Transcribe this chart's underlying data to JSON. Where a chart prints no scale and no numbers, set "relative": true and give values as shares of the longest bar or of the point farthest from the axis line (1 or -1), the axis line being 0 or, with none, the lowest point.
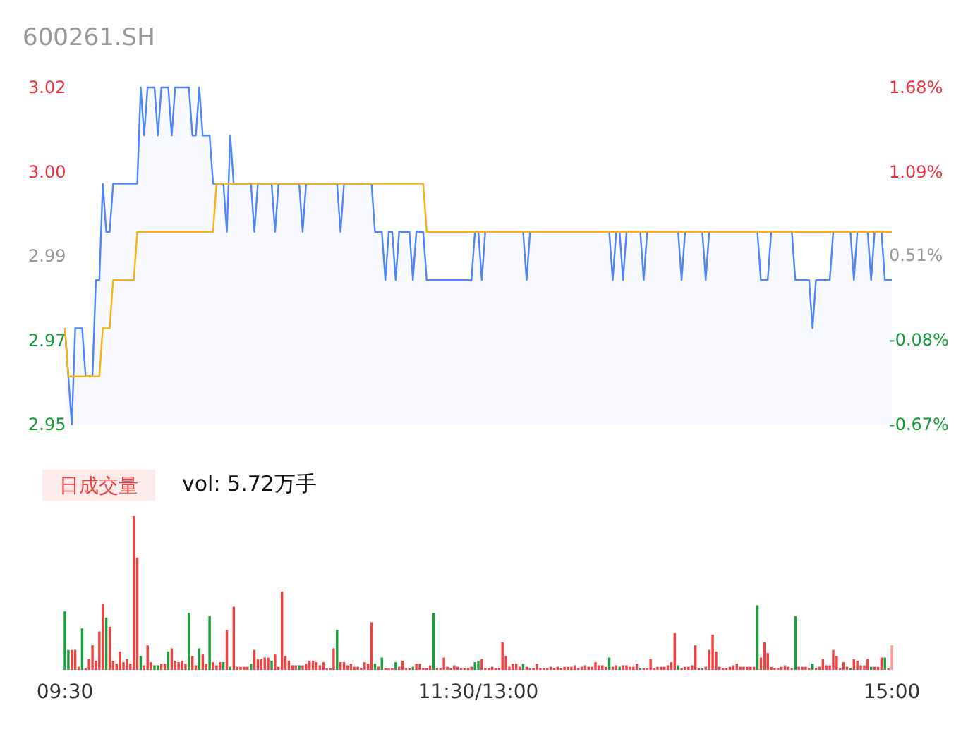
{
  "chart_data": [
    {
      "type": "line",
      "title": "600261.SH",
      "ylim": [
        2.95,
        3.02
      ],
      "yticks": [
        2.95,
        {
          "value": 2.9675,
          "label": "2.97"
        },
        {
          "value": 2.985,
          "label": "2.99"
        },
        {
          "value": 3.0025,
          "label": "3.00"
        },
        3.02
      ],
      "y2lim": [
        -0.67,
        1.68
      ],
      "y2ticks": [
        {
          "value": -0.67,
          "label": "-0.67%"
        },
        {
          "value": -0.08,
          "label": "-0.08%"
        },
        {
          "value": 0.51,
          "label": "0.51%"
        },
        {
          "value": 1.09,
          "label": "1.09%"
        },
        {
          "value": 1.68,
          "label": "1.68%"
        }
      ],
      "categories": [
        null,
        null,
        null,
        null,
        null,
        null,
        null,
        null,
        null,
        null,
        null,
        null,
        null,
        null,
        null,
        null,
        null,
        null,
        null,
        null,
        null,
        null,
        null,
        null,
        null,
        null,
        null,
        null,
        null,
        null,
        null,
        null,
        null,
        null,
        null,
        null,
        null,
        null,
        null,
        null,
        null,
        null,
        null,
        null,
        null,
        null,
        null,
        null,
        null,
        null,
        null,
        null,
        null,
        null,
        null,
        null,
        null,
        null,
        null,
        null,
        null,
        null,
        null,
        null,
        null,
        null,
        null,
        null,
        null,
        null,
        null,
        null,
        null,
        null,
        null,
        null,
        null,
        null,
        null,
        null,
        null,
        null,
        null,
        null,
        null,
        null,
        null,
        null,
        null,
        null,
        null,
        null,
        null,
        null,
        null,
        null,
        null,
        null,
        null,
        null,
        null,
        null,
        null,
        null,
        null,
        null,
        null,
        null,
        null,
        null,
        null,
        null,
        null,
        null,
        null,
        null,
        null,
        null,
        null,
        null,
        null,
        null,
        null,
        null,
        null,
        null,
        null,
        null,
        null,
        null,
        null,
        null,
        null,
        null,
        null,
        null,
        null,
        null,
        null,
        null,
        null,
        null,
        null,
        null,
        null,
        null,
        null,
        null,
        null,
        null,
        null,
        null,
        null,
        null,
        null,
        null,
        null,
        null,
        null,
        null,
        null,
        null,
        null,
        null,
        null,
        null,
        null,
        null,
        null,
        null,
        null,
        null,
        null,
        null,
        null,
        null,
        null,
        null,
        null,
        null,
        null,
        null,
        null,
        null,
        null,
        null,
        null,
        null,
        null,
        null,
        null,
        null,
        null,
        null,
        null,
        null,
        null,
        null,
        null,
        null,
        null,
        null,
        null,
        null,
        null,
        null,
        null,
        null,
        null,
        null,
        null,
        null,
        null,
        null,
        null,
        null,
        null,
        null,
        null,
        null,
        null,
        null,
        null,
        null,
        null,
        null,
        null,
        null,
        null,
        null,
        null,
        null,
        null,
        null,
        null,
        null,
        null,
        null,
        null,
        null,
        null
      ],
      "series": [
        {
          "type": "area",
          "color": "#4f86f7",
          "values": [
            2.97,
            2.96,
            2.95,
            2.97,
            2.97,
            2.97,
            2.96,
            2.96,
            2.96,
            2.98,
            2.98,
            3.0,
            2.99,
            2.99,
            3.0,
            3.0,
            3.0,
            3.0,
            3.0,
            3.0,
            3.0,
            3.0,
            3.02,
            3.01,
            3.02,
            3.02,
            3.02,
            3.01,
            3.02,
            3.02,
            3.02,
            3.01,
            3.02,
            3.02,
            3.02,
            3.02,
            3.02,
            3.01,
            3.01,
            3.02,
            3.01,
            3.01,
            3.01,
            3.0,
            3.0,
            3.0,
            3.0,
            2.99,
            3.01,
            3.0,
            3.0,
            3.0,
            3.0,
            3.0,
            3.0,
            2.99,
            3.0,
            3.0,
            3.0,
            3.0,
            3.0,
            2.99,
            3.0,
            3.0,
            3.0,
            3.0,
            3.0,
            3.0,
            3.0,
            2.99,
            3.0,
            3.0,
            3.0,
            3.0,
            3.0,
            3.0,
            3.0,
            3.0,
            3.0,
            3.0,
            2.99,
            3.0,
            3.0,
            3.0,
            3.0,
            3.0,
            3.0,
            3.0,
            3.0,
            3.0,
            2.99,
            2.99,
            2.99,
            2.98,
            2.99,
            2.99,
            2.98,
            2.99,
            2.99,
            2.99,
            2.99,
            2.98,
            2.99,
            2.99,
            2.99,
            2.98,
            2.98,
            2.98,
            2.98,
            2.98,
            2.98,
            2.98,
            2.98,
            2.98,
            2.98,
            2.98,
            2.98,
            2.98,
            2.98,
            2.99,
            2.99,
            2.98,
            2.99,
            2.99,
            2.99,
            2.99,
            2.99,
            2.99,
            2.99,
            2.99,
            2.99,
            2.99,
            2.99,
            2.99,
            2.98,
            2.99,
            2.99,
            2.99,
            2.99,
            2.99,
            2.99,
            2.99,
            2.99,
            2.99,
            2.99,
            2.99,
            2.99,
            2.99,
            2.99,
            2.99,
            2.99,
            2.99,
            2.99,
            2.99,
            2.99,
            2.99,
            2.99,
            2.99,
            2.99,
            2.98,
            2.99,
            2.99,
            2.98,
            2.99,
            2.99,
            2.99,
            2.99,
            2.99,
            2.98,
            2.99,
            2.99,
            2.99,
            2.99,
            2.99,
            2.99,
            2.99,
            2.99,
            2.99,
            2.99,
            2.98,
            2.99,
            2.99,
            2.99,
            2.99,
            2.99,
            2.99,
            2.98,
            2.99,
            2.99,
            2.99,
            2.99,
            2.99,
            2.99,
            2.99,
            2.99,
            2.99,
            2.99,
            2.99,
            2.99,
            2.99,
            2.99,
            2.99,
            2.98,
            2.98,
            2.98,
            2.99,
            2.99,
            2.99,
            2.99,
            2.99,
            2.99,
            2.99,
            2.98,
            2.98,
            2.98,
            2.98,
            2.98,
            2.97,
            2.98,
            2.98,
            2.98,
            2.98,
            2.98,
            2.99,
            2.99,
            2.99,
            2.99,
            2.99,
            2.99,
            2.98,
            2.99,
            2.99,
            2.99,
            2.99,
            2.98,
            2.99,
            2.99,
            2.99,
            2.98,
            2.98,
            2.98
          ]
        },
        {
          "type": "line",
          "color": "#f5b311",
          "values": [
            2.97,
            2.96,
            2.96,
            2.96,
            2.96,
            2.96,
            2.96,
            2.96,
            2.96,
            2.96,
            2.96,
            2.97,
            2.97,
            2.97,
            2.98,
            2.98,
            2.98,
            2.98,
            2.98,
            2.98,
            2.98,
            2.99,
            2.99,
            2.99,
            2.99,
            2.99,
            2.99,
            2.99,
            2.99,
            2.99,
            2.99,
            2.99,
            2.99,
            2.99,
            2.99,
            2.99,
            2.99,
            2.99,
            2.99,
            2.99,
            2.99,
            2.99,
            2.99,
            2.99,
            3.0,
            3.0,
            3.0,
            3.0,
            3.0,
            3.0,
            3.0,
            3.0,
            3.0,
            3.0,
            3.0,
            3.0,
            3.0,
            3.0,
            3.0,
            3.0,
            3.0,
            3.0,
            3.0,
            3.0,
            3.0,
            3.0,
            3.0,
            3.0,
            3.0,
            3.0,
            3.0,
            3.0,
            3.0,
            3.0,
            3.0,
            3.0,
            3.0,
            3.0,
            3.0,
            3.0,
            3.0,
            3.0,
            3.0,
            3.0,
            3.0,
            3.0,
            3.0,
            3.0,
            3.0,
            3.0,
            3.0,
            3.0,
            3.0,
            3.0,
            3.0,
            3.0,
            3.0,
            3.0,
            3.0,
            3.0,
            3.0,
            3.0,
            3.0,
            3.0,
            3.0,
            2.99,
            2.99,
            2.99,
            2.99,
            2.99,
            2.99,
            2.99,
            2.99,
            2.99,
            2.99,
            2.99,
            2.99,
            2.99,
            2.99,
            2.99,
            2.99,
            2.99,
            2.99,
            2.99,
            2.99,
            2.99,
            2.99,
            2.99,
            2.99,
            2.99,
            2.99,
            2.99,
            2.99,
            2.99,
            2.99,
            2.99,
            2.99,
            2.99,
            2.99,
            2.99,
            2.99,
            2.99,
            2.99,
            2.99,
            2.99,
            2.99,
            2.99,
            2.99,
            2.99,
            2.99,
            2.99,
            2.99,
            2.99,
            2.99,
            2.99,
            2.99,
            2.99,
            2.99,
            2.99,
            2.99,
            2.99,
            2.99,
            2.99,
            2.99,
            2.99,
            2.99,
            2.99,
            2.99,
            2.99,
            2.99,
            2.99,
            2.99,
            2.99,
            2.99,
            2.99,
            2.99,
            2.99,
            2.99,
            2.99,
            2.99,
            2.99,
            2.99,
            2.99,
            2.99,
            2.99,
            2.99,
            2.99,
            2.99,
            2.99,
            2.99,
            2.99,
            2.99,
            2.99,
            2.99,
            2.99,
            2.99,
            2.99,
            2.99,
            2.99,
            2.99,
            2.99,
            2.99,
            2.99,
            2.99,
            2.99,
            2.99,
            2.99,
            2.99,
            2.99,
            2.99,
            2.99,
            2.99,
            2.99,
            2.99,
            2.99,
            2.99,
            2.99,
            2.99,
            2.99,
            2.99,
            2.99,
            2.99,
            2.99,
            2.99,
            2.99,
            2.99,
            2.99,
            2.99,
            2.99,
            2.99,
            2.99,
            2.99,
            2.99,
            2.99,
            2.99,
            2.99,
            2.99,
            2.99,
            2.99,
            2.99,
            2.99
          ]
        }
      ]
    },
    {
      "type": "bar",
      "relative": true,
      "annotations": [
        "日成交量",
        "vol: 5.72万手"
      ],
      "categories": [
        "09:30",
        null,
        null,
        null,
        null,
        null,
        null,
        null,
        null,
        null,
        null,
        null,
        null,
        null,
        null,
        null,
        null,
        null,
        null,
        null,
        null,
        null,
        null,
        null,
        null,
        null,
        null,
        null,
        null,
        null,
        null,
        null,
        null,
        null,
        null,
        null,
        null,
        null,
        null,
        null,
        null,
        null,
        null,
        null,
        null,
        null,
        null,
        null,
        null,
        null,
        null,
        null,
        null,
        null,
        null,
        null,
        null,
        null,
        null,
        null,
        null,
        null,
        null,
        null,
        null,
        null,
        null,
        null,
        null,
        null,
        null,
        null,
        null,
        null,
        null,
        null,
        null,
        null,
        null,
        null,
        null,
        null,
        null,
        null,
        null,
        null,
        null,
        null,
        null,
        null,
        null,
        null,
        null,
        null,
        null,
        null,
        null,
        null,
        null,
        null,
        null,
        null,
        null,
        null,
        null,
        null,
        null,
        null,
        null,
        null,
        null,
        null,
        null,
        null,
        null,
        null,
        null,
        null,
        null,
        null,
        "11:30/13:00",
        null,
        null,
        null,
        null,
        null,
        null,
        null,
        null,
        null,
        null,
        null,
        null,
        null,
        null,
        null,
        null,
        null,
        null,
        null,
        null,
        null,
        null,
        null,
        null,
        null,
        null,
        null,
        null,
        null,
        null,
        null,
        null,
        null,
        null,
        null,
        null,
        null,
        null,
        null,
        null,
        null,
        null,
        null,
        null,
        null,
        null,
        null,
        null,
        null,
        null,
        null,
        null,
        null,
        null,
        null,
        null,
        null,
        null,
        null,
        null,
        null,
        null,
        null,
        null,
        null,
        null,
        null,
        null,
        null,
        null,
        null,
        null,
        null,
        null,
        null,
        null,
        null,
        null,
        null,
        null,
        null,
        null,
        null,
        null,
        null,
        null,
        null,
        null,
        null,
        null,
        null,
        null,
        null,
        null,
        null,
        null,
        null,
        null,
        null,
        null,
        null,
        null,
        null,
        null,
        null,
        null,
        null,
        null,
        null,
        null,
        null,
        null,
        null,
        null,
        null,
        null,
        null,
        null,
        null,
        "15:00"
      ],
      "values": [
        0.38,
        0.13,
        0.13,
        0.13,
        0.02,
        0.27,
        0.01,
        0.07,
        0.16,
        0.06,
        0.25,
        0.43,
        0.34,
        0.28,
        0.06,
        0.04,
        0.12,
        0.05,
        0.07,
        0.04,
        1,
        0.73,
        0.09,
        0.03,
        0.16,
        0.05,
        0.03,
        0.03,
        0.04,
        0.04,
        0.12,
        0.14,
        0.06,
        0.05,
        0.06,
        0.04,
        0.37,
        0.09,
        0.03,
        0.14,
        0.1,
        0.04,
        0.35,
        0.05,
        0.03,
        0.05,
        0.05,
        0.26,
        0.02,
        0.41,
        0.02,
        0.02,
        0.02,
        0.02,
        0.04,
        0.13,
        0.07,
        0.07,
        0.08,
        0.08,
        0.06,
        0.1,
        0.02,
        0.51,
        0.09,
        0.06,
        0.03,
        0.03,
        0.03,
        0.03,
        0.04,
        0.06,
        0.06,
        0.05,
        0.03,
        0.05,
        0.01,
        0.01,
        0.14,
        0.26,
        0.05,
        0.05,
        0.03,
        0.04,
        0.02,
        0.02,
        0.01,
        0.05,
        0.04,
        0.31,
        0.04,
        0.02,
        0.08,
        0.01,
        0.01,
        0.01,
        0.05,
        0.02,
        0.06,
        0.01,
        0.01,
        0.02,
        0.04,
        0.04,
        0.01,
        0.01,
        0.03,
        0.37,
        0.01,
        0.01,
        0.08,
        0.02,
        0.01,
        0.03,
        0.02,
        0.01,
        0.01,
        0.01,
        0.02,
        0.05,
        0.06,
        0.07,
        0.01,
        0.01,
        0.02,
        0.01,
        0.01,
        0.18,
        0.09,
        0.02,
        0.04,
        0.04,
        0.02,
        0.04,
        0.02,
        0.01,
        0.01,
        0.04,
        0.01,
        0.01,
        0.01,
        0.02,
        0.01,
        0.02,
        0.01,
        0.02,
        0.02,
        0.02,
        0.03,
        0.01,
        0.02,
        0.03,
        0.02,
        0.02,
        0.05,
        0.03,
        0.03,
        0.02,
        0.08,
        0.02,
        0.03,
        0.02,
        0.03,
        0.03,
        0.02,
        0.02,
        0.04,
        0.01,
        0.01,
        0.01,
        0.07,
        0.01,
        0.02,
        0.02,
        0.02,
        0.03,
        0.05,
        0.24,
        0.03,
        0.01,
        0.02,
        0.02,
        0.03,
        0.16,
        0.01,
        0.01,
        0.02,
        0.13,
        0.23,
        0.12,
        0.02,
        0.01,
        0.01,
        0.02,
        0.03,
        0.04,
        0.02,
        0.02,
        0.02,
        0.02,
        0.02,
        0.42,
        0.08,
        0.18,
        0.11,
        0.02,
        0.01,
        0.01,
        0.02,
        0.03,
        0.02,
        0.01,
        0.35,
        0.02,
        0.02,
        0.02,
        0.01,
        0.04,
        0.01,
        0.02,
        0.07,
        0.03,
        0.03,
        0.13,
        0.09,
        0.01,
        0.05,
        0.02,
        0.01,
        0.07,
        0.06,
        0.03,
        0.03,
        0.07,
        0.02,
        0.02,
        0.02,
        0.08,
        0.08,
        0.01,
        0.16
      ],
      "colors": [
        "#1a9f3c",
        "#1a9f3c",
        "#f24040",
        "#f24040",
        "#f24040",
        "#1a9f3c",
        "#f24040",
        "#f24040",
        "#f24040",
        "#f24040",
        "#f24040",
        "#f24040",
        "#1a9f3c",
        "#f24040",
        "#f24040",
        "#f24040",
        "#f24040",
        "#f24040",
        "#f24040",
        "#f24040",
        "#f24040",
        "#f24040",
        "#1a9f3c",
        "#f24040",
        "#f24040",
        "#f24040",
        "#1a9f3c",
        "#1a9f3c",
        "#f24040",
        "#f24040",
        "#1a9f3c",
        "#f24040",
        "#f24040",
        "#f24040",
        "#f24040",
        "#f24040",
        "#1a9f3c",
        "#f24040",
        "#f24040",
        "#1a9f3c",
        "#f24040",
        "#f24040",
        "#1a9f3c",
        "#f24040",
        "#f24040",
        "#f24040",
        "#1a9f3c",
        "#f24040",
        "#1a9f3c",
        "#f24040",
        "#f24040",
        "#f24040",
        "#f24040",
        "#f24040",
        "#1a9f3c",
        "#f24040",
        "#f24040",
        "#f24040",
        "#f24040",
        "#f24040",
        "#1a9f3c",
        "#f24040",
        "#f24040",
        "#f24040",
        "#f24040",
        "#f24040",
        "#f24040",
        "#f24040",
        "#1a9f3c",
        "#f24040",
        "#f24040",
        "#f24040",
        "#f24040",
        "#f24040",
        "#f24040",
        "#f24040",
        "#f24040",
        "#f24040",
        "#f24040",
        "#1a9f3c",
        "#f24040",
        "#f24040",
        "#f24040",
        "#f24040",
        "#f24040",
        "#f24040",
        "#f24040",
        "#f24040",
        "#f24040",
        "#f24040",
        "#1a9f3c",
        "#f24040",
        "#1a9f3c",
        "#f24040",
        "#f24040",
        "#f24040",
        "#1a9f3c",
        "#f24040",
        "#f24040",
        "#f24040",
        "#f24040",
        "#1a9f3c",
        "#f24040",
        "#f24040",
        "#f24040",
        "#f24040",
        "#f24040",
        "#1a9f3c",
        "#f24040",
        "#f24040",
        "#f24040",
        "#f24040",
        "#f24040",
        "#f24040",
        "#f24040",
        "#f24040",
        "#f24040",
        "#f24040",
        "#f24040",
        "#1a9f3c",
        "#1a9f3c",
        "#f24040",
        "#f24040",
        "#f24040",
        "#f24040",
        "#f24040",
        "#f24040",
        "#f24040",
        "#f24040",
        "#f24040",
        "#f24040",
        "#f24040",
        "#f24040",
        "#1a9f3c",
        "#f24040",
        "#f24040",
        "#f24040",
        "#f24040",
        "#f24040",
        "#f24040",
        "#f24040",
        "#f24040",
        "#f24040",
        "#f24040",
        "#f24040",
        "#f24040",
        "#f24040",
        "#f24040",
        "#f24040",
        "#f24040",
        "#f24040",
        "#f24040",
        "#f24040",
        "#f24040",
        "#f24040",
        "#f24040",
        "#f24040",
        "#f24040",
        "#1a9f3c",
        "#f24040",
        "#f24040",
        "#1a9f3c",
        "#f24040",
        "#f24040",
        "#f24040",
        "#f24040",
        "#f24040",
        "#1a9f3c",
        "#f24040",
        "#f24040",
        "#f24040",
        "#f24040",
        "#f24040",
        "#f24040",
        "#f24040",
        "#f24040",
        "#f24040",
        "#f24040",
        "#1a9f3c",
        "#f24040",
        "#f24040",
        "#f24040",
        "#f24040",
        "#f24040",
        "#f24040",
        "#1a9f3c",
        "#f24040",
        "#f24040",
        "#f24040",
        "#f24040",
        "#f24040",
        "#f24040",
        "#f24040",
        "#f24040",
        "#f24040",
        "#f24040",
        "#f24040",
        "#f24040",
        "#f24040",
        "#f24040",
        "#f24040",
        "#1a9f3c",
        "#f24040",
        "#f24040",
        "#f24040",
        "#f24040",
        "#f24040",
        "#f24040",
        "#f24040",
        "#f24040",
        "#f24040",
        "#f24040",
        "#1a9f3c",
        "#f24040",
        "#f24040",
        "#f24040",
        "#f24040",
        "#1a9f3c",
        "#f24040",
        "#f24040",
        "#f24040",
        "#f24040",
        "#f24040",
        "#f24040",
        "#f24040",
        "#f24040",
        "#f24040",
        "#f24040",
        "#1a9f3c",
        "#f24040",
        "#f24040",
        "#f24040",
        "#f24040",
        "#f24040",
        "#1a9f3c",
        "#f24040",
        "#f24040",
        "#f24040",
        "#1a9f3c",
        "#f24040",
        "#ff9c9c"
      ]
    }
  ]
}
